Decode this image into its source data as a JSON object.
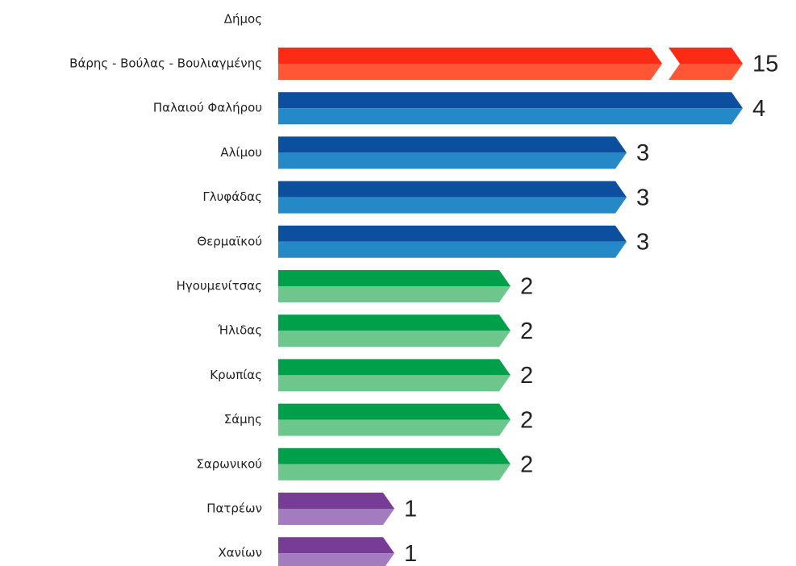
{
  "chart_data": {
    "type": "bar",
    "orientation": "horizontal",
    "y_label": "Δήμος",
    "categories": [
      "Βάρης - Βούλας - Βουλιαγμένης",
      "Παλαιού Φαλήρου",
      "Αλίμου",
      "Γλυφάδας",
      "Θερμαϊκού",
      "Ηγουμενίτσας",
      "Ήλιδας",
      "Κρωπίας",
      "Σάμης",
      "Σαρωνικού",
      "Πατρέων",
      "Χανίων"
    ],
    "values": [
      15,
      4,
      3,
      3,
      3,
      2,
      2,
      2,
      2,
      2,
      1,
      1
    ],
    "colors": [
      [
        "#ff2a14",
        "#ff5636"
      ],
      [
        "#0d4f9f",
        "#2588c7"
      ],
      [
        "#0d4f9f",
        "#2588c7"
      ],
      [
        "#0d4f9f",
        "#2588c7"
      ],
      [
        "#0d4f9f",
        "#2588c7"
      ],
      [
        "#00a04a",
        "#6dc68b"
      ],
      [
        "#00a04a",
        "#6dc68b"
      ],
      [
        "#00a04a",
        "#6dc68b"
      ],
      [
        "#00a04a",
        "#6dc68b"
      ],
      [
        "#00a04a",
        "#6dc68b"
      ],
      [
        "#773c96",
        "#a27cbf"
      ],
      [
        "#773c96",
        "#a27cbf"
      ]
    ]
  }
}
